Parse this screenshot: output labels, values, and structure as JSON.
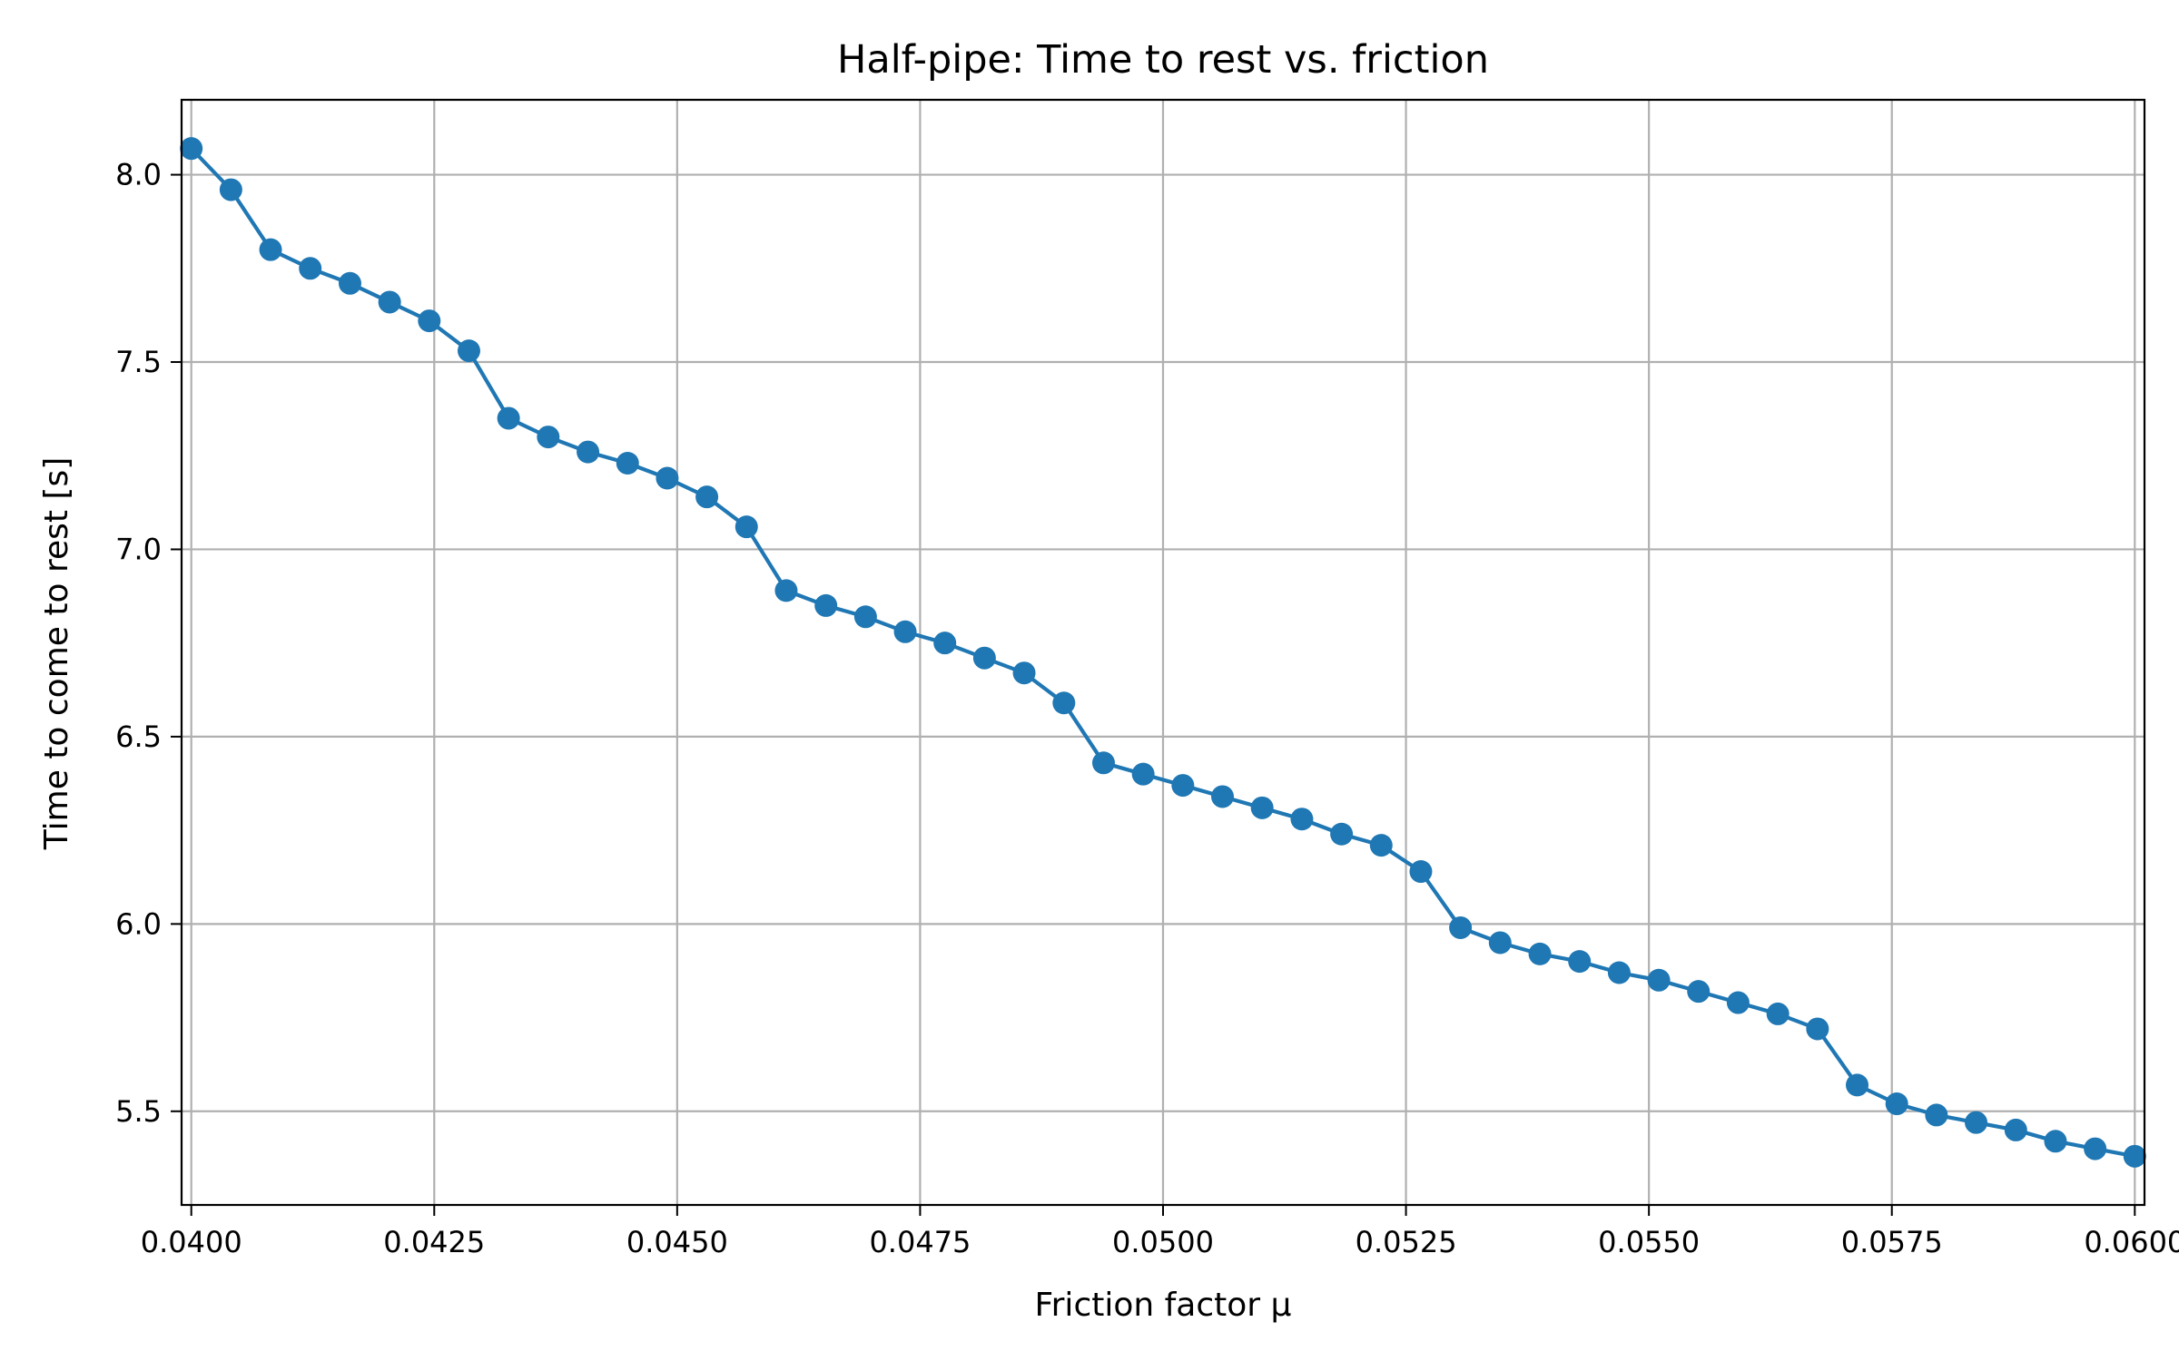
{
  "chart_data": {
    "type": "line",
    "title": "Half-pipe: Time to rest vs. friction",
    "xlabel": "Friction factor μ",
    "ylabel": "Time to come to rest [s]",
    "xlim": [
      0.0399,
      0.0601
    ],
    "ylim": [
      5.25,
      8.2
    ],
    "grid": true,
    "xticks": [
      0.04,
      0.0425,
      0.045,
      0.0475,
      0.05,
      0.0525,
      0.055,
      0.0575,
      0.06
    ],
    "xtick_labels": [
      "0.0400",
      "0.0425",
      "0.0450",
      "0.0475",
      "0.0500",
      "0.0525",
      "0.0550",
      "0.0575",
      "0.0600"
    ],
    "yticks": [
      5.5,
      6.0,
      6.5,
      7.0,
      7.5,
      8.0
    ],
    "ytick_labels": [
      "5.5",
      "6.0",
      "6.5",
      "7.0",
      "7.5",
      "8.0"
    ],
    "series": [
      {
        "color": "#1f77b4",
        "x": [
          0.04,
          0.040408,
          0.040816,
          0.041224,
          0.041633,
          0.042041,
          0.042449,
          0.042857,
          0.043265,
          0.043673,
          0.044082,
          0.04449,
          0.044898,
          0.045306,
          0.045714,
          0.046122,
          0.046531,
          0.046939,
          0.047347,
          0.047755,
          0.048163,
          0.048571,
          0.04898,
          0.049388,
          0.049796,
          0.050204,
          0.050612,
          0.05102,
          0.051429,
          0.051837,
          0.052245,
          0.052653,
          0.053061,
          0.053469,
          0.053878,
          0.054286,
          0.054694,
          0.055102,
          0.05551,
          0.055918,
          0.056327,
          0.056735,
          0.057143,
          0.057551,
          0.057959,
          0.058367,
          0.058776,
          0.059184,
          0.059592,
          0.06
        ],
        "y": [
          8.07,
          7.96,
          7.8,
          7.75,
          7.71,
          7.66,
          7.61,
          7.53,
          7.35,
          7.3,
          7.26,
          7.23,
          7.19,
          7.14,
          7.06,
          6.89,
          6.85,
          6.82,
          6.78,
          6.75,
          6.71,
          6.67,
          6.59,
          6.43,
          6.4,
          6.37,
          6.34,
          6.31,
          6.28,
          6.24,
          6.21,
          6.14,
          5.99,
          5.95,
          5.92,
          5.9,
          5.87,
          5.85,
          5.82,
          5.79,
          5.76,
          5.72,
          5.57,
          5.52,
          5.49,
          5.47,
          5.45,
          5.42,
          5.4,
          5.38
        ]
      }
    ]
  }
}
